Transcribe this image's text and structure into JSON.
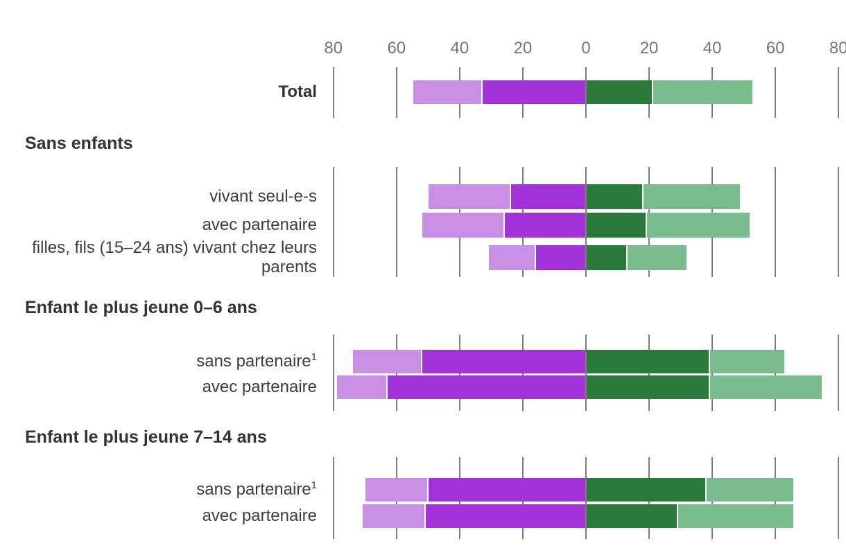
{
  "chart_data": {
    "type": "bar",
    "subtype": "diverging_stacked_bar",
    "title": "",
    "legend_position": "none-visible (cut off)",
    "grid": true,
    "axis": {
      "tick_labels": [
        "80",
        "60",
        "40",
        "20",
        "0",
        "20",
        "40",
        "60",
        "80"
      ],
      "tick_values": [
        -80,
        -60,
        -40,
        -20,
        0,
        20,
        40,
        60,
        80
      ],
      "xlim": [
        -85,
        82
      ]
    },
    "series_order": [
      "left_outer",
      "left_inner",
      "right_inner",
      "right_outer"
    ],
    "colors": {
      "left_outer": "#c88fe4",
      "left_inner": "#a333d8",
      "right_inner": "#2a7a3c",
      "right_outer": "#78bd8b",
      "gridline": "#7d7d7d",
      "axis_text": "#767676",
      "label_text": "#3d3d3d",
      "header_text": "#333333"
    },
    "groups": [
      {
        "header": "",
        "rows": [
          {
            "label": "Total",
            "bold": true,
            "sup": "",
            "left_outer": 22,
            "left_inner": 33,
            "right_inner": 21,
            "right_outer": 32
          }
        ]
      },
      {
        "header": "Sans enfants",
        "rows": [
          {
            "label": "vivant seul-e-s",
            "bold": false,
            "sup": "",
            "left_outer": 26,
            "left_inner": 24,
            "right_inner": 18,
            "right_outer": 31
          },
          {
            "label": "avec partenaire",
            "bold": false,
            "sup": "",
            "left_outer": 26,
            "left_inner": 26,
            "right_inner": 19,
            "right_outer": 33
          },
          {
            "label": "filles, fils (15–24 ans) vivant chez leurs parents",
            "bold": false,
            "sup": "",
            "left_outer": 15,
            "left_inner": 16,
            "right_inner": 13,
            "right_outer": 19
          }
        ]
      },
      {
        "header": "Enfant le plus jeune 0–6 ans",
        "rows": [
          {
            "label": "sans partenaire",
            "bold": false,
            "sup": "1",
            "left_outer": 22,
            "left_inner": 52,
            "right_inner": 39,
            "right_outer": 24
          },
          {
            "label": "avec partenaire",
            "bold": false,
            "sup": "",
            "left_outer": 16,
            "left_inner": 63,
            "right_inner": 39,
            "right_outer": 36
          }
        ]
      },
      {
        "header": "Enfant le plus jeune 7–14 ans",
        "rows": [
          {
            "label": "sans partenaire",
            "bold": false,
            "sup": "1",
            "left_outer": 20,
            "left_inner": 50,
            "right_inner": 38,
            "right_outer": 28
          },
          {
            "label": "avec partenaire",
            "bold": false,
            "sup": "",
            "left_outer": 20,
            "left_inner": 51,
            "right_inner": 29,
            "right_outer": 37
          }
        ]
      }
    ]
  }
}
